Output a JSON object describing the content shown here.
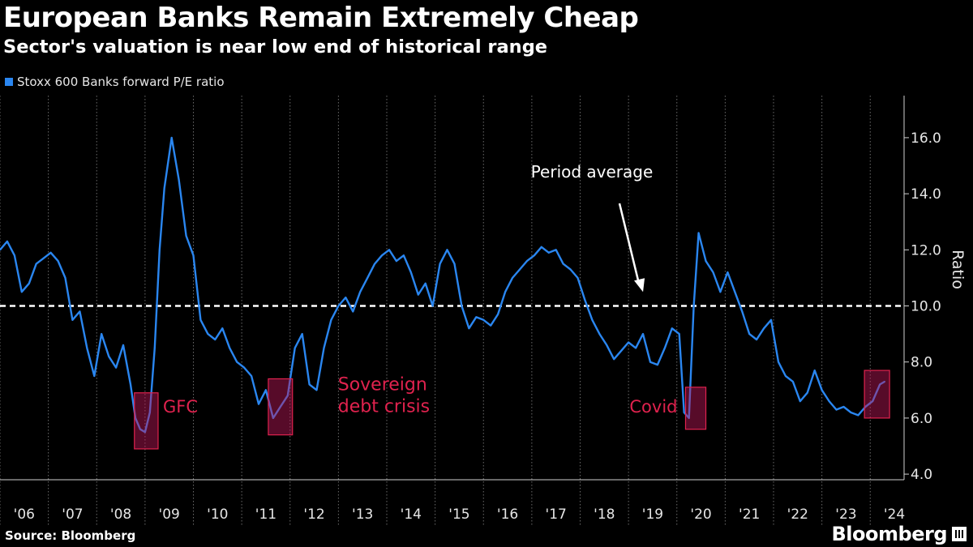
{
  "header": {
    "title": "European Banks Remain Extremely Cheap",
    "subtitle": "Sector's valuation is near low end of historical range"
  },
  "legend": {
    "label": "Stoxx 600 Banks forward P/E ratio"
  },
  "footer": {
    "source": "Source: Bloomberg",
    "brand": "Bloomberg"
  },
  "colors": {
    "series": "#2a86f0",
    "average": "#ffffff",
    "highlight_fill": "#c2185b",
    "highlight_stroke": "#e0224e",
    "annotation": "#e0224e",
    "grid": "#6b6b6b"
  },
  "chart_data": {
    "type": "line",
    "title": "European Banks Remain Extremely Cheap",
    "subtitle": "Sector's valuation is near low end of historical range",
    "ylabel": "Ratio",
    "ylim": [
      3.8,
      17.5
    ],
    "xlim": [
      2006.0,
      2024.7
    ],
    "grid": true,
    "y_ticks": [
      4.0,
      6.0,
      8.0,
      10.0,
      12.0,
      14.0,
      16.0
    ],
    "x_tick_labels": [
      "'06",
      "'07",
      "'08",
      "'09",
      "'10",
      "'11",
      "'12",
      "'13",
      "'14",
      "'15",
      "'16",
      "'17",
      "'18",
      "'19",
      "'20",
      "'21",
      "'22",
      "'23",
      "'24"
    ],
    "x_tick_positions": [
      2006,
      2007,
      2008,
      2009,
      2010,
      2011,
      2012,
      2013,
      2014,
      2015,
      2016,
      2017,
      2018,
      2019,
      2020,
      2021,
      2022,
      2023,
      2024
    ],
    "series": [
      {
        "name": "Stoxx 600 Banks forward P/E ratio",
        "x": [
          2006.0,
          2006.15,
          2006.3,
          2006.45,
          2006.6,
          2006.75,
          2006.9,
          2007.05,
          2007.2,
          2007.35,
          2007.5,
          2007.65,
          2007.8,
          2007.95,
          2008.1,
          2008.25,
          2008.4,
          2008.55,
          2008.7,
          2008.8,
          2008.9,
          2009.0,
          2009.1,
          2009.2,
          2009.3,
          2009.4,
          2009.55,
          2009.7,
          2009.85,
          2010.0,
          2010.15,
          2010.3,
          2010.45,
          2010.6,
          2010.75,
          2010.9,
          2011.05,
          2011.2,
          2011.35,
          2011.5,
          2011.65,
          2011.8,
          2011.95,
          2012.1,
          2012.25,
          2012.4,
          2012.55,
          2012.7,
          2012.85,
          2013.0,
          2013.15,
          2013.3,
          2013.45,
          2013.6,
          2013.75,
          2013.9,
          2014.05,
          2014.2,
          2014.35,
          2014.5,
          2014.65,
          2014.8,
          2014.95,
          2015.1,
          2015.25,
          2015.4,
          2015.55,
          2015.7,
          2015.85,
          2016.0,
          2016.15,
          2016.3,
          2016.45,
          2016.6,
          2016.75,
          2016.9,
          2017.05,
          2017.2,
          2017.35,
          2017.5,
          2017.65,
          2017.8,
          2017.95,
          2018.1,
          2018.25,
          2018.4,
          2018.55,
          2018.7,
          2018.85,
          2019.0,
          2019.15,
          2019.3,
          2019.45,
          2019.6,
          2019.75,
          2019.9,
          2020.05,
          2020.15,
          2020.25,
          2020.35,
          2020.45,
          2020.6,
          2020.75,
          2020.9,
          2021.05,
          2021.2,
          2021.35,
          2021.5,
          2021.65,
          2021.8,
          2021.95,
          2022.1,
          2022.25,
          2022.4,
          2022.55,
          2022.7,
          2022.85,
          2023.0,
          2023.15,
          2023.3,
          2023.45,
          2023.6,
          2023.75,
          2023.9,
          2024.05,
          2024.2,
          2024.3
        ],
        "y": [
          12.0,
          12.3,
          11.8,
          10.5,
          10.8,
          11.5,
          11.7,
          11.9,
          11.6,
          11.0,
          9.5,
          9.8,
          8.5,
          7.5,
          9.0,
          8.2,
          7.8,
          8.6,
          7.2,
          6.0,
          5.6,
          5.5,
          6.2,
          8.5,
          12.0,
          14.2,
          16.0,
          14.5,
          12.5,
          11.8,
          9.5,
          9.0,
          8.8,
          9.2,
          8.5,
          8.0,
          7.8,
          7.5,
          6.5,
          7.0,
          6.0,
          6.4,
          6.8,
          8.5,
          9.0,
          7.2,
          7.0,
          8.5,
          9.5,
          10.0,
          10.3,
          9.8,
          10.5,
          11.0,
          11.5,
          11.8,
          12.0,
          11.6,
          11.8,
          11.2,
          10.4,
          10.8,
          10.0,
          11.5,
          12.0,
          11.5,
          10.0,
          9.2,
          9.6,
          9.5,
          9.3,
          9.7,
          10.5,
          11.0,
          11.3,
          11.6,
          11.8,
          12.1,
          11.9,
          12.0,
          11.5,
          11.3,
          11.0,
          10.2,
          9.5,
          9.0,
          8.6,
          8.1,
          8.4,
          8.7,
          8.5,
          9.0,
          8.0,
          7.9,
          8.5,
          9.2,
          9.0,
          6.2,
          6.0,
          10.0,
          12.6,
          11.6,
          11.2,
          10.5,
          11.2,
          10.5,
          9.8,
          9.0,
          8.8,
          9.2,
          9.5,
          8.0,
          7.5,
          7.3,
          6.6,
          6.9,
          7.7,
          7.0,
          6.6,
          6.3,
          6.4,
          6.2,
          6.1,
          6.4,
          6.6,
          7.2,
          7.3
        ]
      }
    ],
    "reference_lines": [
      {
        "axis": "y",
        "value": 10.0,
        "style": "dashed"
      }
    ],
    "annotations": [
      {
        "text": "Period average",
        "points_to": {
          "x": 2019.25,
          "y": 10.5
        }
      },
      {
        "text": "GFC",
        "highlight": {
          "x0": 2008.78,
          "x1": 2009.27,
          "y0": 4.9,
          "y1": 6.9
        }
      },
      {
        "text": "Sovereign debt crisis",
        "highlight": {
          "x0": 2011.55,
          "x1": 2012.05,
          "y0": 5.4,
          "y1": 7.4
        }
      },
      {
        "text": "Covid",
        "highlight": {
          "x0": 2020.18,
          "x1": 2020.6,
          "y0": 5.6,
          "y1": 7.1
        }
      },
      {
        "text": "",
        "highlight": {
          "x0": 2023.88,
          "x1": 2024.4,
          "y0": 6.0,
          "y1": 7.7
        }
      }
    ]
  }
}
